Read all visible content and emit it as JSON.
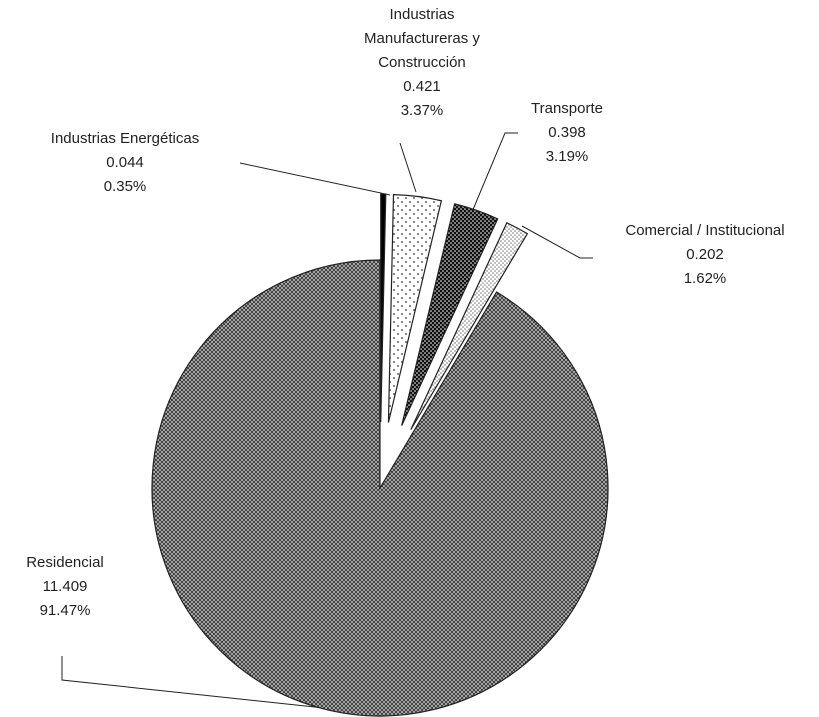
{
  "chart_data": {
    "type": "pie",
    "categories": [
      "Industrias Energéticas",
      "Industrias Manufactureras y Construcción",
      "Transporte",
      "Comercial / Institucional",
      "Residencial"
    ],
    "values": [
      0.044,
      0.421,
      0.398,
      0.202,
      11.409
    ],
    "percentages": [
      0.35,
      3.37,
      3.19,
      1.62,
      91.47
    ],
    "percentage_labels": [
      "0.35%",
      "3.37%",
      "3.19%",
      "1.62%",
      "91.47%"
    ]
  }
}
